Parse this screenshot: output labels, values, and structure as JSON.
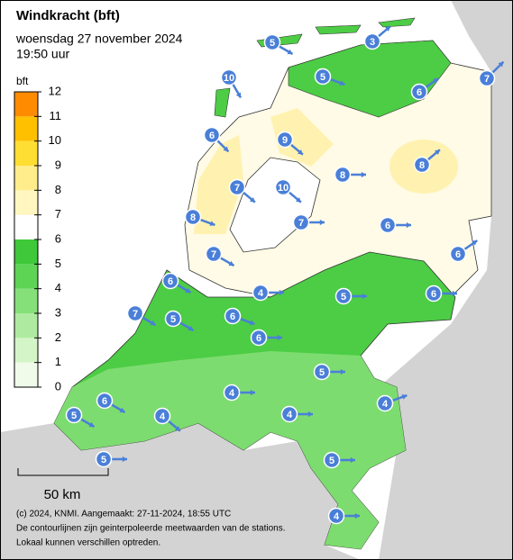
{
  "header": {
    "title": "Windkracht (bft)",
    "date": "woensdag 27 november 2024",
    "time": "19:50 uur"
  },
  "legend": {
    "unit": "bft",
    "ticks": [
      0,
      1,
      2,
      3,
      4,
      5,
      6,
      7,
      8,
      9,
      10,
      11,
      12
    ],
    "colors": [
      "#f0fbea",
      "#d4f5c8",
      "#aeeba0",
      "#86e07a",
      "#5ed455",
      "#3ec83a",
      "#ffffff",
      "#fff6c0",
      "#ffec8a",
      "#ffde33",
      "#ffc000",
      "#ff8c00"
    ]
  },
  "stations": [
    5,
    3,
    7,
    10,
    5,
    6,
    6,
    9,
    8,
    8,
    7,
    10,
    8,
    7,
    6,
    7,
    6,
    6,
    4,
    5,
    6,
    7,
    5,
    6,
    6,
    5,
    4,
    4,
    6,
    5,
    4,
    4,
    5,
    5,
    4
  ],
  "scale": {
    "label": "50 km"
  },
  "footer": [
    "(c) 2024, KNMI. Aangemaakt: 27-11-2024, 18:55 UTC",
    "De contourlijnen zijn geinterpoleerde meetwaarden van de stations.",
    "Lokaal kunnen verschillen optreden."
  ]
}
